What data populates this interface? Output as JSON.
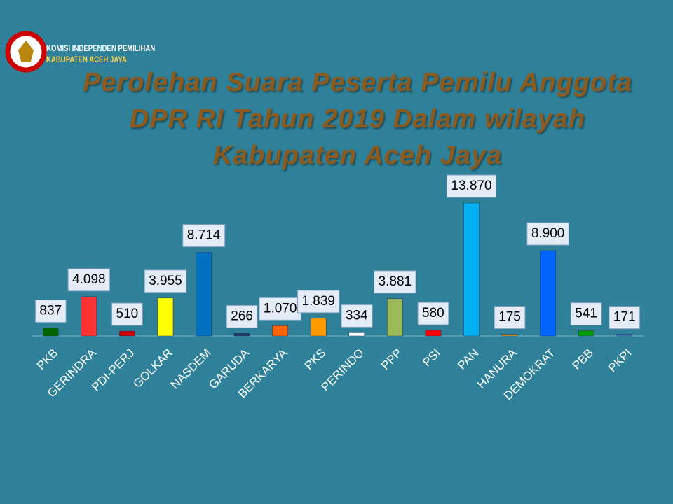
{
  "logo": {
    "line1": "KOMISI INDEPENDEN PEMILIHAN",
    "line2": "KABUPATEN ACEH JAYA"
  },
  "chart_data": {
    "type": "bar",
    "title": "Perolehan Suara Peserta Pemilu Anggota DPR RI Tahun 2019 Dalam wilayah Kabupaten Aceh Jaya",
    "categories": [
      "PKB",
      "GERINDRA",
      "PDI-PERJ",
      "GOLKAR",
      "NASDEM",
      "GARUDA",
      "BERKARYA",
      "PKS",
      "PERINDO",
      "PPP",
      "PSI",
      "PAN",
      "HANURA",
      "DEMOKRAT",
      "PBB",
      "PKPI"
    ],
    "values": [
      837,
      4098,
      510,
      3955,
      8714,
      266,
      1070,
      1839,
      334,
      3881,
      580,
      13870,
      175,
      8900,
      541,
      171
    ],
    "value_labels": [
      "837",
      "4.098",
      "510",
      "3.955",
      "8.714",
      "266",
      "1.070",
      "1.839",
      "334",
      "3.881",
      "580",
      "13.870",
      "175",
      "8.900",
      "541",
      "171"
    ],
    "colors": [
      "#006400",
      "#ff3333",
      "#cc0000",
      "#ffff00",
      "#0070c0",
      "#1f3864",
      "#ff6600",
      "#ff9900",
      "#ffffff",
      "#9bbb59",
      "#ff0000",
      "#00b0f0",
      "#ff9900",
      "#0066ff",
      "#00a000",
      "#4f81bd"
    ]
  }
}
